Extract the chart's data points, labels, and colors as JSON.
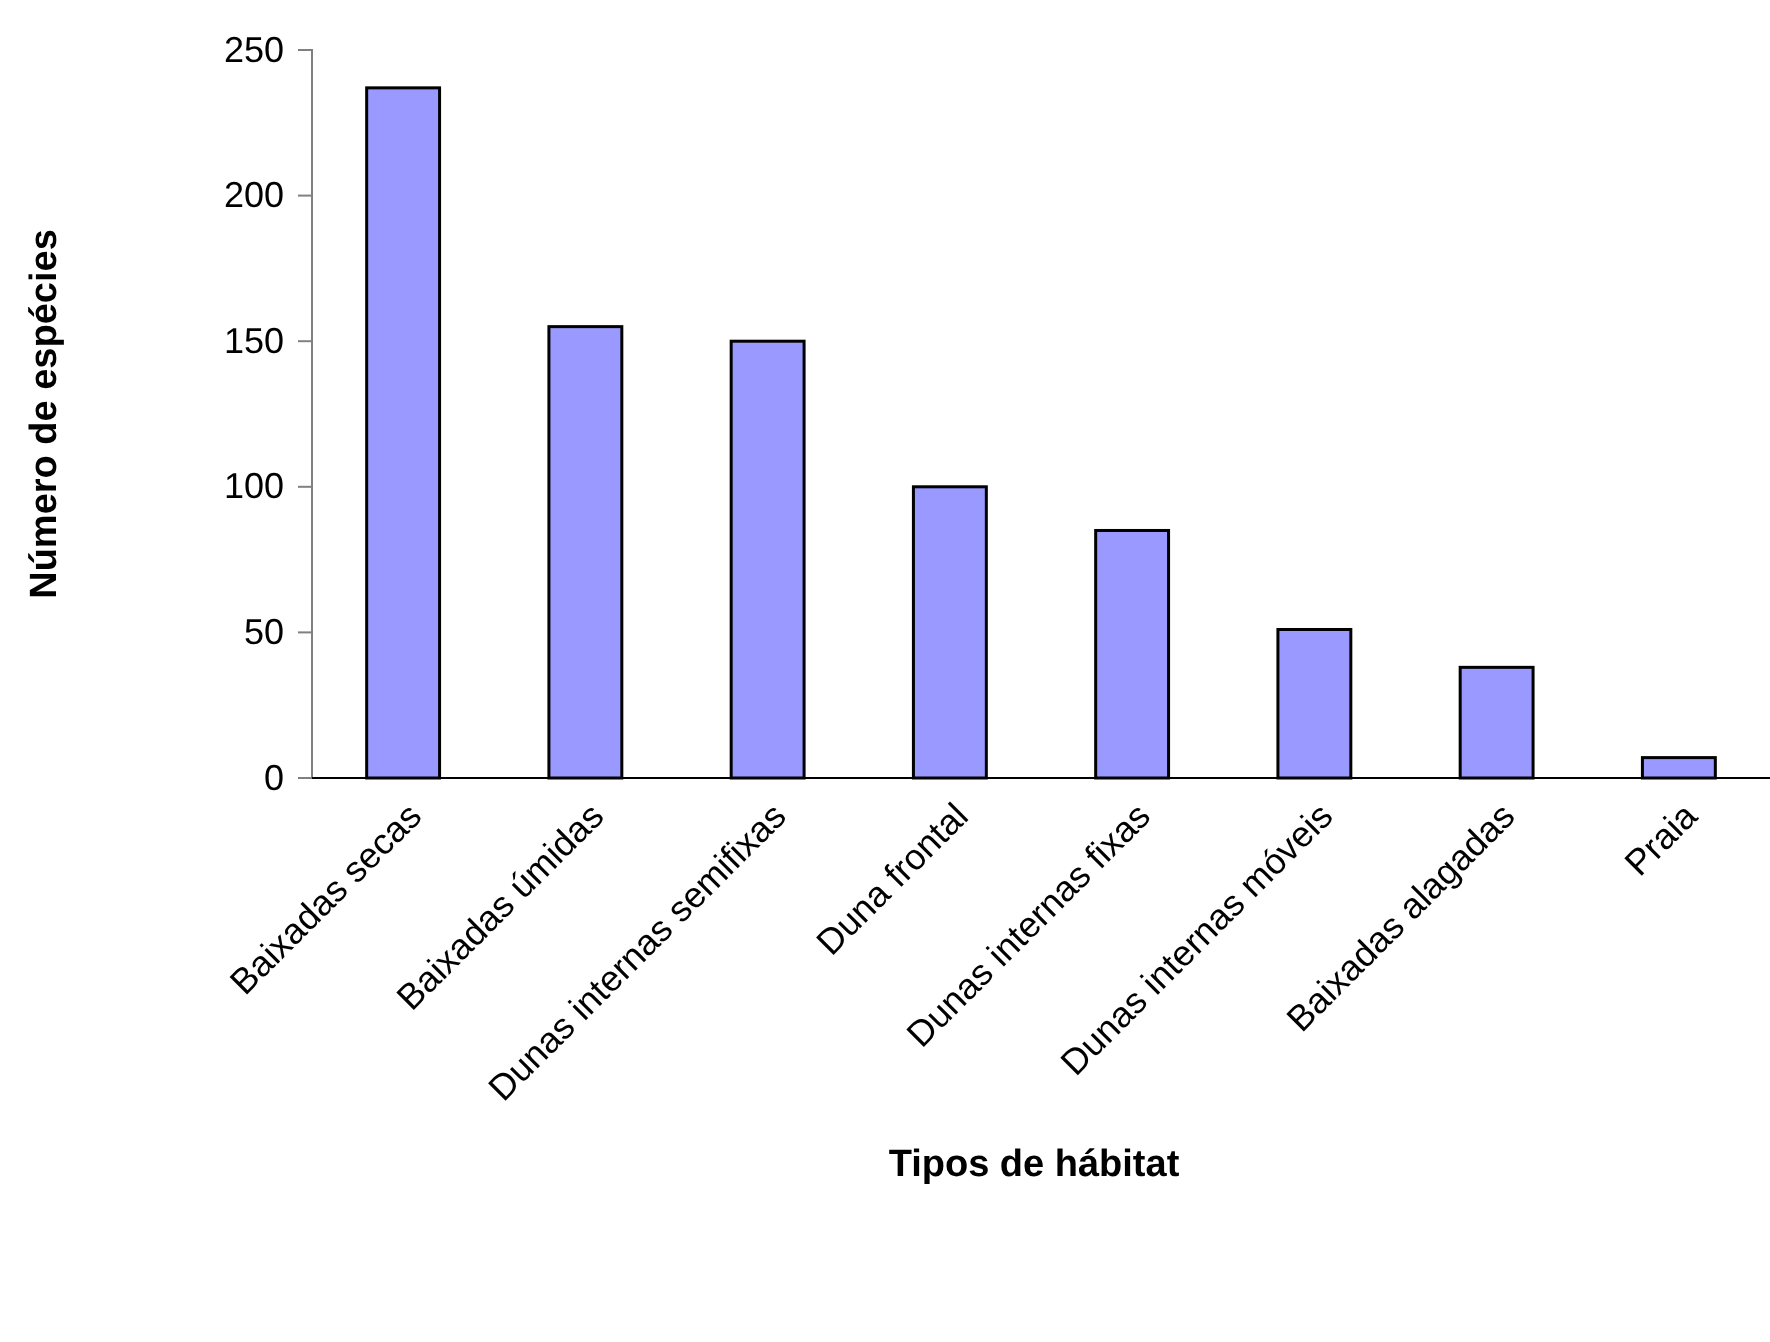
{
  "chart_data": {
    "type": "bar",
    "xlabel": "Tipos de hábitat",
    "ylabel": "Número de espécies",
    "categories": [
      "Baixadas secas",
      "Baixadas úmidas",
      "Dunas internas semifixas",
      "Duna frontal",
      "Dunas internas fixas",
      "Dunas internas móveis",
      "Baixadas alagadas",
      "Praia"
    ],
    "values": [
      237,
      155,
      150,
      100,
      85,
      51,
      38,
      7
    ],
    "color": "#9999ff",
    "ylim": [
      0,
      250
    ],
    "yticks": [
      0,
      50,
      100,
      150,
      200,
      250
    ],
    "grid": false
  }
}
